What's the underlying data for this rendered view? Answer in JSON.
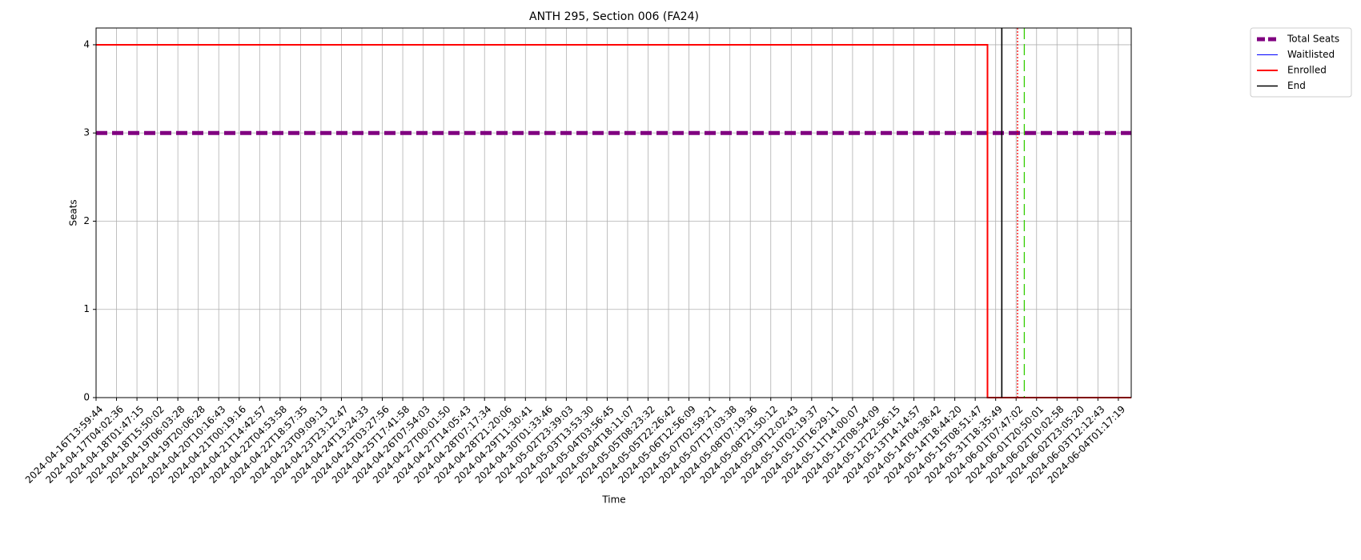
{
  "chart_data": {
    "type": "line",
    "title": "ANTH 295, Section 006 (FA24)",
    "xlabel": "Time",
    "ylabel": "Seats",
    "xlim": [
      0,
      50.63
    ],
    "ylim": [
      0,
      4.19
    ],
    "yticks": [
      0,
      1,
      2,
      3,
      4
    ],
    "xticks": [
      {
        "value": 0,
        "label": "2024-04-16T13:59:44"
      },
      {
        "value": 1,
        "label": "2024-04-17T04:02:36"
      },
      {
        "value": 2,
        "label": "2024-04-18T01:47:15"
      },
      {
        "value": 3,
        "label": "2024-04-18T15:50:02"
      },
      {
        "value": 4,
        "label": "2024-04-19T06:03:28"
      },
      {
        "value": 5,
        "label": "2024-04-19T20:06:28"
      },
      {
        "value": 6,
        "label": "2024-04-20T10:16:43"
      },
      {
        "value": 7,
        "label": "2024-04-21T00:19:16"
      },
      {
        "value": 8,
        "label": "2024-04-21T14:42:57"
      },
      {
        "value": 9,
        "label": "2024-04-22T04:53:58"
      },
      {
        "value": 10,
        "label": "2024-04-22T18:57:35"
      },
      {
        "value": 11,
        "label": "2024-04-23T09:09:13"
      },
      {
        "value": 12,
        "label": "2024-04-23T23:12:47"
      },
      {
        "value": 13,
        "label": "2024-04-24T13:24:33"
      },
      {
        "value": 14,
        "label": "2024-04-25T03:27:56"
      },
      {
        "value": 15,
        "label": "2024-04-25T17:41:58"
      },
      {
        "value": 16,
        "label": "2024-04-26T07:54:03"
      },
      {
        "value": 17,
        "label": "2024-04-27T00:01:50"
      },
      {
        "value": 18,
        "label": "2024-04-27T14:05:43"
      },
      {
        "value": 19,
        "label": "2024-04-28T07:17:34"
      },
      {
        "value": 20,
        "label": "2024-04-28T21:20:06"
      },
      {
        "value": 21,
        "label": "2024-04-29T11:30:41"
      },
      {
        "value": 22,
        "label": "2024-04-30T01:33:46"
      },
      {
        "value": 23,
        "label": "2024-05-02T23:39:03"
      },
      {
        "value": 24,
        "label": "2024-05-03T13:53:30"
      },
      {
        "value": 25,
        "label": "2024-05-04T03:56:45"
      },
      {
        "value": 26,
        "label": "2024-05-04T18:11:07"
      },
      {
        "value": 27,
        "label": "2024-05-05T08:23:32"
      },
      {
        "value": 28,
        "label": "2024-05-05T22:26:42"
      },
      {
        "value": 29,
        "label": "2024-05-06T12:56:09"
      },
      {
        "value": 30,
        "label": "2024-05-07T02:59:21"
      },
      {
        "value": 31,
        "label": "2024-05-07T17:03:38"
      },
      {
        "value": 32,
        "label": "2024-05-08T07:19:36"
      },
      {
        "value": 33,
        "label": "2024-05-08T21:50:12"
      },
      {
        "value": 34,
        "label": "2024-05-09T12:02:43"
      },
      {
        "value": 35,
        "label": "2024-05-10T02:19:37"
      },
      {
        "value": 36,
        "label": "2024-05-10T16:29:11"
      },
      {
        "value": 37,
        "label": "2024-05-11T14:00:07"
      },
      {
        "value": 38,
        "label": "2024-05-12T08:54:09"
      },
      {
        "value": 39,
        "label": "2024-05-12T22:56:15"
      },
      {
        "value": 40,
        "label": "2024-05-13T14:14:57"
      },
      {
        "value": 41,
        "label": "2024-05-14T04:38:42"
      },
      {
        "value": 42,
        "label": "2024-05-14T18:44:20"
      },
      {
        "value": 43,
        "label": "2024-05-15T08:51:47"
      },
      {
        "value": 44,
        "label": "2024-05-31T18:35:49"
      },
      {
        "value": 45,
        "label": "2024-06-01T07:47:02"
      },
      {
        "value": 46,
        "label": "2024-06-01T20:50:01"
      },
      {
        "value": 47,
        "label": "2024-06-02T10:02:58"
      },
      {
        "value": 48,
        "label": "2024-06-02T23:05:20"
      },
      {
        "value": 49,
        "label": "2024-06-03T12:12:43"
      },
      {
        "value": 50,
        "label": "2024-06-04T01:17:19"
      }
    ],
    "grid": true,
    "legend": "outside-upper-right",
    "series": [
      {
        "name": "Total Seats",
        "color": "#800080",
        "width": 5,
        "dash": "dashed",
        "x": [
          0,
          50.63
        ],
        "values": [
          3,
          3
        ]
      },
      {
        "name": "Waitlisted",
        "color": "#0000ff",
        "width": 1,
        "x": [
          0,
          50.63
        ],
        "values": [
          0,
          0
        ]
      },
      {
        "name": "Enrolled",
        "color": "#ff0000",
        "width": 2,
        "x": [
          0,
          43.6,
          43.6,
          50.63
        ],
        "values": [
          4,
          4,
          0,
          0
        ]
      }
    ],
    "vlines": [
      {
        "name": "End",
        "x": 44.3,
        "color": "#000000"
      },
      {
        "x": 45.07,
        "color": "#ff0000",
        "dash": "dotted"
      },
      {
        "x": 45.4,
        "color": "#33cc00",
        "dash": "dashed"
      }
    ]
  }
}
